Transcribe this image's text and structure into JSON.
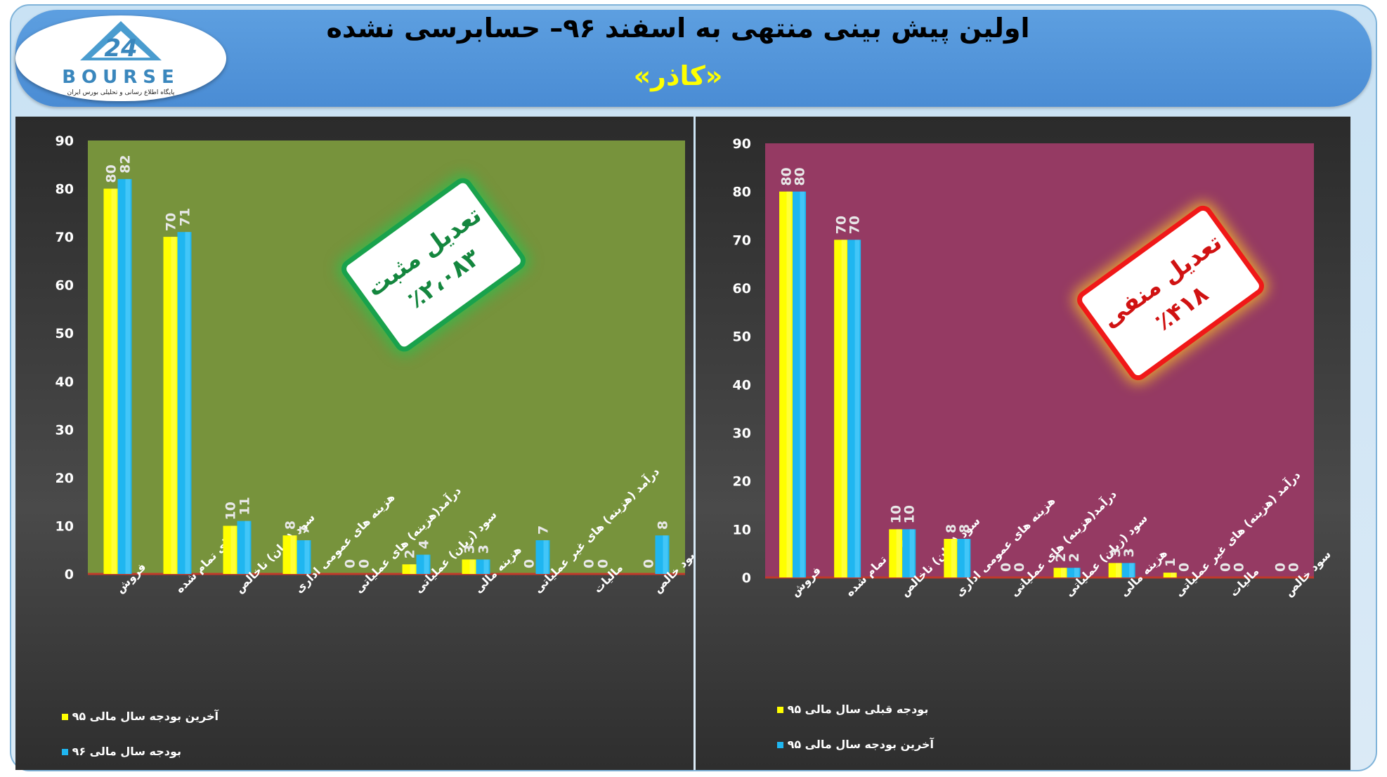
{
  "header": {
    "title": "اولین پیش بینی منتهی به اسفند ۹۶– حسابرسی نشده",
    "subtitle": "«کاذر»",
    "logo_text": "BOURSE",
    "logo_number": "24",
    "logo_tagline": "پایگاه اطلاع رسانی و تحلیلی بورس ایران"
  },
  "colors": {
    "frame": "#c9e2f4",
    "banner": "#4a8cd4",
    "yellow_series": "#ffff00",
    "blue_series": "#1fb6f0",
    "left_plot_bg": "#77933c",
    "right_plot_bg": "#953a63",
    "chart_bg": "#3a3a3a",
    "positive_badge": "#19a24c",
    "negative_badge": "#f01818"
  },
  "badges": {
    "left": {
      "line1": "تعدیل مثبت",
      "line2": "٪۲،۰۸۳"
    },
    "right": {
      "line1": "تعدیل منفی",
      "line2": "٪۴۱۸"
    }
  },
  "chart_data": [
    {
      "type": "bar",
      "categories": [
        "فروش",
        "بهای تمام شده",
        "سود (زیان) ناخالص",
        "هزینه های عمومی اداری",
        "درآمد(هزینه) های عملیاتی",
        "سود (زیان) عملیاتی",
        "هزینه مالی",
        "درآمد (هزینه) های غیر عملیاتی",
        "مالیات",
        "سود خالص"
      ],
      "series": [
        {
          "name": "آخرین بودجه سال مالی ۹۵",
          "values": [
            80,
            70,
            10,
            8,
            0,
            2,
            3,
            0,
            0,
            0
          ],
          "color": "#ffff00"
        },
        {
          "name": "بودجه سال مالی ۹۶",
          "values": [
            82,
            71,
            11,
            7,
            0,
            4,
            3,
            7,
            0,
            8
          ],
          "color": "#1fb6f0"
        }
      ],
      "ylim": [
        0,
        90
      ],
      "yticks": [
        0,
        10,
        20,
        30,
        40,
        50,
        60,
        70,
        80,
        90
      ],
      "grid": false,
      "legend_position": "bottom-left"
    },
    {
      "type": "bar",
      "categories": [
        "فروش",
        "بهای تمام شده",
        "سود (زیان) ناخالص",
        "هزینه های عمومی اداری",
        "درآمد(هزینه) های عملیاتی",
        "سود (زیان) عملیاتی",
        "هزینه مالی",
        "درآمد (هزینه) های غیر عملیاتی",
        "مالیات",
        "سود خالص"
      ],
      "series": [
        {
          "name": "بودجه قبلی سال مالی ۹۵",
          "values": [
            80,
            70,
            10,
            8,
            0,
            2,
            3,
            1,
            0,
            0
          ],
          "color": "#ffff00"
        },
        {
          "name": "آخرین بودجه سال مالی ۹۵",
          "values": [
            80,
            70,
            10,
            8,
            0,
            2,
            3,
            0,
            0,
            0
          ],
          "color": "#1fb6f0"
        }
      ],
      "ylim": [
        0,
        90
      ],
      "yticks": [
        0,
        10,
        20,
        30,
        40,
        50,
        60,
        70,
        80,
        90
      ],
      "grid": false,
      "legend_position": "bottom-left"
    }
  ]
}
